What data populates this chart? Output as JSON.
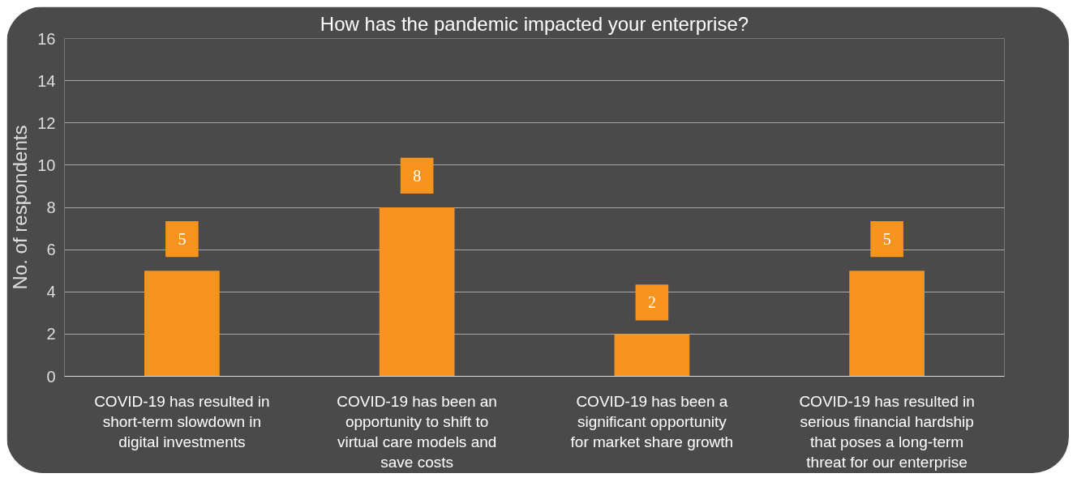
{
  "chart_data": {
    "type": "bar",
    "title": "How has the pandemic impacted your enterprise?",
    "ylabel": "No. of respondents",
    "categories": [
      "COVID-19 has resulted in short-term slowdown in digital investments",
      "COVID-19 has been an opportunity to shift to virtual care models and save costs",
      "COVID-19 has been a significant opportunity for market share growth",
      "COVID-19 has resulted in serious financial hardship that poses a long-term threat for our enterprise"
    ],
    "values": [
      5,
      8,
      2,
      5
    ],
    "color": "#f7941d",
    "ylim": [
      0,
      16
    ],
    "yticks": [
      0,
      2,
      4,
      6,
      8,
      10,
      12,
      14,
      16
    ],
    "grid": "y",
    "data_labels": true
  }
}
